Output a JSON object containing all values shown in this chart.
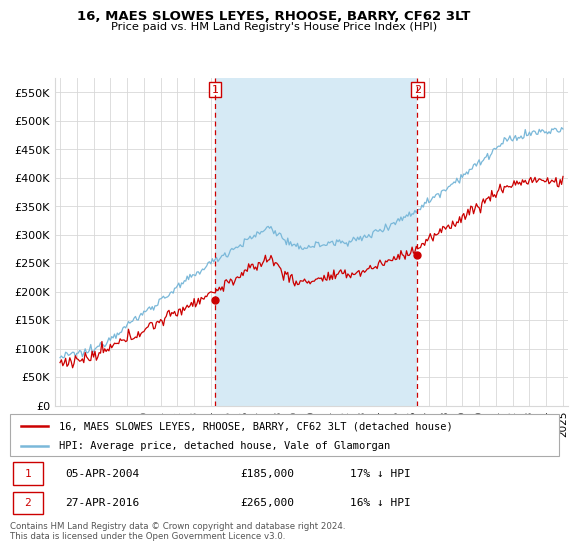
{
  "title": "16, MAES SLOWES LEYES, RHOOSE, BARRY, CF62 3LT",
  "subtitle": "Price paid vs. HM Land Registry's House Price Index (HPI)",
  "yticks": [
    0,
    50000,
    100000,
    150000,
    200000,
    250000,
    300000,
    350000,
    400000,
    450000,
    500000,
    550000
  ],
  "ytick_labels": [
    "£0",
    "£50K",
    "£100K",
    "£150K",
    "£200K",
    "£250K",
    "£300K",
    "£350K",
    "£400K",
    "£450K",
    "£500K",
    "£550K"
  ],
  "ylim": [
    0,
    575000
  ],
  "xlim_start": 1994.7,
  "xlim_end": 2025.3,
  "hpi_color": "#7ab8d9",
  "hpi_fill_color": "#d6eaf5",
  "price_color": "#cc0000",
  "marker1_x": 2004.25,
  "marker1_y": 185000,
  "marker1_label": "1",
  "marker2_x": 2016.32,
  "marker2_y": 265000,
  "marker2_label": "2",
  "legend_line1": "16, MAES SLOWES LEYES, RHOOSE, BARRY, CF62 3LT (detached house)",
  "legend_line2": "HPI: Average price, detached house, Vale of Glamorgan",
  "footer": "Contains HM Land Registry data © Crown copyright and database right 2024.\nThis data is licensed under the Open Government Licence v3.0.",
  "bg_color": "#ffffff",
  "grid_color": "#d8d8d8",
  "vline_color": "#cc0000",
  "xticks": [
    1995,
    1996,
    1997,
    1998,
    1999,
    2000,
    2001,
    2002,
    2003,
    2004,
    2005,
    2006,
    2007,
    2008,
    2009,
    2010,
    2011,
    2012,
    2013,
    2014,
    2015,
    2016,
    2017,
    2018,
    2019,
    2020,
    2021,
    2022,
    2023,
    2024,
    2025
  ]
}
